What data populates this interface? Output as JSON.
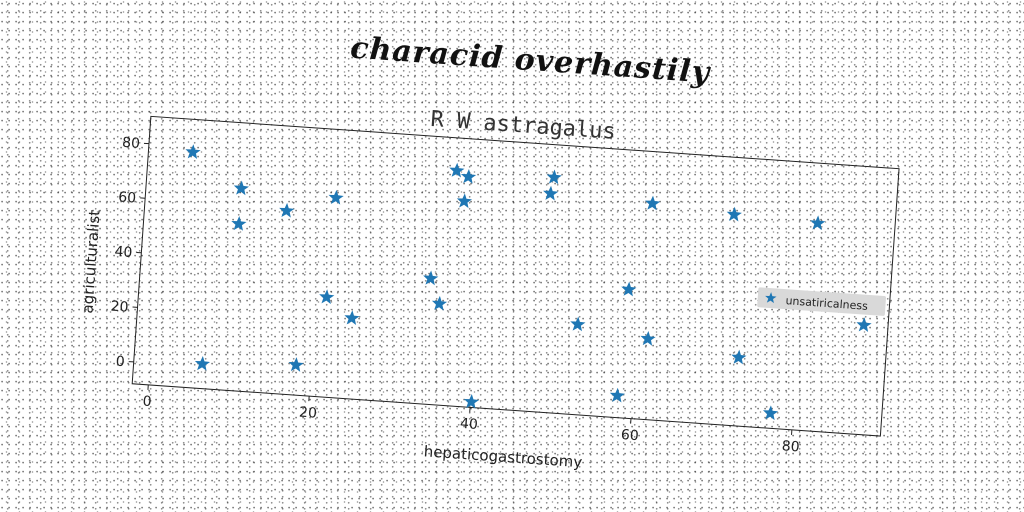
{
  "figure_title": "characid overhastily",
  "colors": {
    "marker": "#1f77b4",
    "axes": "#222222",
    "legend_bg": "#d9d9d9"
  },
  "chart_data": {
    "type": "scatter",
    "title": "R W astragalus",
    "xlabel": "hepaticogastrostomy",
    "ylabel": "agriculturalist",
    "xlim": [
      -2,
      91
    ],
    "ylim": [
      -8,
      90
    ],
    "xticks": [
      0,
      20,
      40,
      60,
      80
    ],
    "yticks": [
      0,
      20,
      40,
      60,
      80
    ],
    "grid": false,
    "legend_position": "right",
    "series": [
      {
        "name": "unsatiricalness",
        "marker": "star",
        "points": [
          [
            3.5,
            78
          ],
          [
            6.5,
            1
          ],
          [
            9.8,
            66
          ],
          [
            9.8,
            53
          ],
          [
            15.6,
            59
          ],
          [
            18.1,
            3
          ],
          [
            21.3,
            28.5
          ],
          [
            21.6,
            65
          ],
          [
            24.6,
            21.5
          ],
          [
            34.0,
            38
          ],
          [
            35.3,
            29
          ],
          [
            36.3,
            78
          ],
          [
            37.5,
            67
          ],
          [
            37.8,
            76
          ],
          [
            40.1,
            -6
          ],
          [
            48.1,
            72
          ],
          [
            48.4,
            78
          ],
          [
            52.6,
            25
          ],
          [
            58.1,
            0
          ],
          [
            58.6,
            39
          ],
          [
            60.8,
            71
          ],
          [
            61.4,
            21.5
          ],
          [
            71.0,
            69
          ],
          [
            72.8,
            17
          ],
          [
            77.2,
            -2.5
          ],
          [
            81.4,
            68
          ],
          [
            88.0,
            32
          ]
        ]
      }
    ]
  }
}
